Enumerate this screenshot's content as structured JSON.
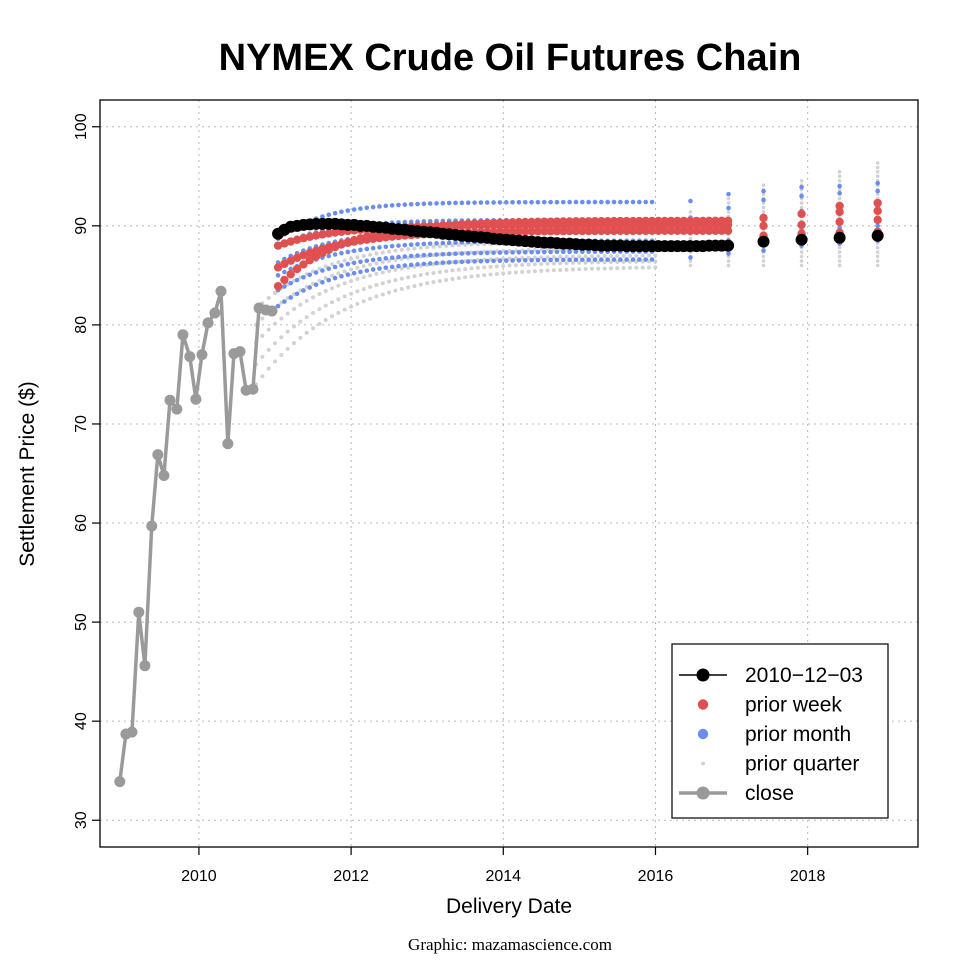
{
  "chart_data": {
    "type": "line",
    "title": "NYMEX Crude Oil Futures Chain",
    "xlabel": "Delivery Date",
    "ylabel": "Settlement Price ($)",
    "credit": "Graphic: mazamascience.com",
    "xlim": [
      2008.7,
      2019.45
    ],
    "ylim": [
      27.3,
      102.7
    ],
    "x_ticks": [
      2010,
      2012,
      2014,
      2016,
      2018
    ],
    "y_ticks": [
      30,
      40,
      50,
      60,
      70,
      80,
      90,
      100
    ],
    "grid": true,
    "legend_position": "bottom-right",
    "colors": {
      "black": "#000000",
      "week": "#e05050",
      "month": "#6a8ef0",
      "quarter": "#d2d2d2",
      "close": "#9a9a9a"
    },
    "series": {
      "close": {
        "name": "close",
        "x": [
          2008.96,
          2009.04,
          2009.12,
          2009.21,
          2009.29,
          2009.38,
          2009.46,
          2009.54,
          2009.62,
          2009.71,
          2009.79,
          2009.88,
          2009.96,
          2010.04,
          2010.12,
          2010.21,
          2010.29,
          2010.38,
          2010.46,
          2010.54,
          2010.62,
          2010.71,
          2010.79,
          2010.88,
          2010.96
        ],
        "y": [
          33.9,
          38.7,
          38.9,
          51.0,
          45.6,
          59.7,
          66.9,
          64.8,
          72.4,
          71.5,
          79.0,
          76.8,
          72.5,
          77.0,
          80.2,
          81.2,
          83.4,
          68.0,
          77.1,
          77.3,
          73.4,
          73.5,
          81.7,
          81.5,
          81.4
        ]
      },
      "latest": {
        "name": "2010-12-03",
        "start": 2011.04,
        "step": 0.0833,
        "y": [
          89.2,
          89.6,
          89.9,
          90.0,
          90.1,
          90.15,
          90.2,
          90.2,
          90.2,
          90.2,
          90.15,
          90.1,
          90.1,
          90.0,
          90.0,
          89.9,
          89.85,
          89.8,
          89.7,
          89.65,
          89.6,
          89.5,
          89.45,
          89.4,
          89.35,
          89.3,
          89.2,
          89.15,
          89.1,
          89.0,
          88.95,
          88.9,
          88.85,
          88.8,
          88.7,
          88.65,
          88.6,
          88.55,
          88.5,
          88.45,
          88.4,
          88.35,
          88.3,
          88.3,
          88.25,
          88.2,
          88.2,
          88.15,
          88.1,
          88.1,
          88.05,
          88.0,
          88.0,
          88.0,
          88.0,
          87.95,
          87.95,
          87.95,
          87.95,
          87.95,
          87.95,
          87.95,
          87.95,
          87.95,
          87.95,
          87.95,
          87.95,
          87.95,
          88.0,
          88.0,
          88.0,
          88.0
        ],
        "extra_x": [
          2017.42,
          2017.92,
          2018.42,
          2018.92
        ],
        "extra_y": [
          88.4,
          88.6,
          88.8,
          89.0
        ]
      },
      "prior_week": {
        "name": "prior week",
        "start_x": 2011.04,
        "end_x": 2016.96,
        "curves": [
          {
            "start": 83.9,
            "end": 90.5,
            "k": 1.2
          },
          {
            "start": 85.8,
            "end": 89.5,
            "k": 1.2
          },
          {
            "start": 88.0,
            "end": 90.1,
            "k": 1.3
          }
        ],
        "extra_x": [
          2017.42,
          2017.92,
          2018.42,
          2018.92
        ],
        "extra_y": [
          [
            89.0,
            90.0,
            90.8
          ],
          [
            89.2,
            90.1,
            91.2
          ],
          [
            89.3,
            90.4,
            91.4,
            92.0
          ],
          [
            89.4,
            90.6,
            91.5,
            92.3
          ]
        ]
      },
      "prior_month": {
        "name": "prior month",
        "start_x": 2011.04,
        "end_x": 2015.96,
        "curves": [
          {
            "start": 81.9,
            "end": 86.6,
            "k": 1.0
          },
          {
            "start": 83.5,
            "end": 87.4,
            "k": 1.0
          },
          {
            "start": 85.0,
            "end": 88.5,
            "k": 1.0
          },
          {
            "start": 86.3,
            "end": 89.6,
            "k": 1.1
          },
          {
            "start": 88.0,
            "end": 90.6,
            "k": 1.2
          },
          {
            "start": 88.7,
            "end": 92.4,
            "k": 1.3
          }
        ],
        "sparse_x": [
          2016.46,
          2016.96,
          2017.42,
          2017.92,
          2018.42,
          2018.92
        ],
        "sparse_y": [
          [
            86.8,
            88.0,
            89.3,
            90.8,
            92.5
          ],
          [
            87.2,
            88.5,
            90.2,
            91.8,
            93.2
          ],
          [
            87.5,
            89.2,
            91.0,
            92.6,
            93.5
          ],
          [
            88.0,
            89.6,
            91.5,
            93.0,
            93.9
          ],
          [
            88.2,
            89.8,
            91.8,
            93.3,
            94.0
          ],
          [
            88.5,
            90.0,
            91.9,
            93.5,
            94.3
          ]
        ]
      },
      "prior_quarter": {
        "name": "prior quarter",
        "start_x": 2010.75,
        "end_x": 2015.96,
        "curves": [
          {
            "start": 74.0,
            "end": 85.8,
            "k": 0.75
          },
          {
            "start": 76.0,
            "end": 86.4,
            "k": 0.8
          },
          {
            "start": 78.2,
            "end": 87.0,
            "k": 0.85
          },
          {
            "start": 80.0,
            "end": 87.7,
            "k": 0.9
          },
          {
            "start": 81.6,
            "end": 88.4,
            "k": 0.95
          }
        ],
        "sparse_x": [
          2016.46,
          2016.96,
          2017.42,
          2017.92,
          2018.42,
          2018.92
        ],
        "sparse_top": [
          91.5,
          92.8,
          94.2,
          95.0,
          95.7,
          96.5
        ]
      }
    },
    "legend": [
      {
        "label": "2010−12−03",
        "style": "black-line-point"
      },
      {
        "label": "prior week",
        "style": "week-point"
      },
      {
        "label": "prior month",
        "style": "month-point"
      },
      {
        "label": "prior quarter",
        "style": "quarter-point"
      },
      {
        "label": "close",
        "style": "close-line-point"
      }
    ]
  }
}
